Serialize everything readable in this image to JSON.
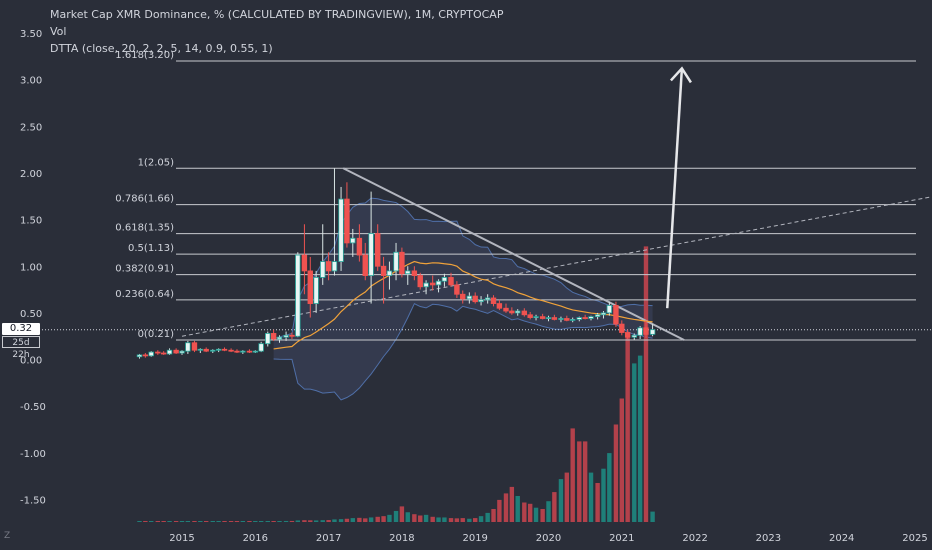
{
  "header": {
    "title": "Market Cap XMR Dominance, % (CALCULATED BY TRADINGVIEW), 1M, CRYPTOCAP",
    "vol_label": "Vol",
    "indicator_label": "DTTA (close, 20, 2, 2, 5, 14, 0.9, 0.55, 1)"
  },
  "price_axis": {
    "current_price": "0.32",
    "bar_timer": "25d 22h",
    "corner_label": "Z"
  },
  "colors": {
    "background": "#2a2e39",
    "up": "#26a69a",
    "down": "#ef5350",
    "vol_up": "#1f7f79",
    "vol_down": "#b3414b",
    "text": "#d1d4dc",
    "fib": "#c8cacf",
    "ma": "#f0a23a",
    "band": "#5a6b9a"
  },
  "chart_data": {
    "type": "candlestick",
    "title": "Market Cap XMR Dominance, % (CALCULATED BY TRADINGVIEW), 1M, CRYPTOCAP",
    "ylim": [
      -1.85,
      3.55
    ],
    "y_ticks": [
      3.5,
      3.0,
      2.5,
      2.0,
      1.5,
      1.0,
      0.5,
      0.0,
      -0.5,
      -1.0,
      -1.5
    ],
    "y_tick_labels": [
      "3.50",
      "3.00",
      "2.50",
      "2.00",
      "1.50",
      "1.00",
      "0.50",
      "0.00",
      "-0.50",
      "-1.00",
      "-1.50"
    ],
    "xlim": [
      2014.35,
      2025.4
    ],
    "x_ticks": [
      2015,
      2016,
      2017,
      2018,
      2019,
      2020,
      2021,
      2022,
      2023,
      2024,
      2025
    ],
    "x_tick_labels": [
      "2015",
      "2016",
      "2017",
      "2018",
      "2019",
      "2020",
      "2021",
      "2022",
      "2023",
      "2024",
      "2025"
    ],
    "grid": false,
    "current_price": 0.32,
    "fib_levels": [
      {
        "label": "1.618(3.20)",
        "ratio": 1.618,
        "value": 3.2
      },
      {
        "label": "1(2.05)",
        "ratio": 1,
        "value": 2.05
      },
      {
        "label": "0.786(1.66)",
        "ratio": 0.786,
        "value": 1.66
      },
      {
        "label": "0.618(1.35)",
        "ratio": 0.618,
        "value": 1.35
      },
      {
        "label": "0.5(1.13)",
        "ratio": 0.5,
        "value": 1.13
      },
      {
        "label": "0.382(0.91)",
        "ratio": 0.382,
        "value": 0.91
      },
      {
        "label": "0.236(0.64)",
        "ratio": 0.236,
        "value": 0.64
      },
      {
        "label": "0(0.21)",
        "ratio": 0,
        "value": 0.21
      }
    ],
    "descending_trendline": {
      "from": [
        2017.2,
        2.05
      ],
      "to": [
        2021.85,
        0.21
      ]
    },
    "ascending_dashed_line": {
      "from": [
        2015.0,
        0.25
      ],
      "to": [
        2025.4,
        1.77
      ]
    },
    "projection_arrow": {
      "from": [
        2021.62,
        0.55
      ],
      "to": [
        2021.82,
        3.12
      ]
    },
    "candles": [
      {
        "t": 2014.42,
        "o": 0.03,
        "h": 0.06,
        "l": 0.01,
        "c": 0.05
      },
      {
        "t": 2014.5,
        "o": 0.05,
        "h": 0.07,
        "l": 0.02,
        "c": 0.04
      },
      {
        "t": 2014.58,
        "o": 0.04,
        "h": 0.09,
        "l": 0.03,
        "c": 0.08
      },
      {
        "t": 2014.67,
        "o": 0.08,
        "h": 0.1,
        "l": 0.05,
        "c": 0.07
      },
      {
        "t": 2014.75,
        "o": 0.07,
        "h": 0.09,
        "l": 0.05,
        "c": 0.06
      },
      {
        "t": 2014.83,
        "o": 0.06,
        "h": 0.12,
        "l": 0.05,
        "c": 0.1
      },
      {
        "t": 2014.92,
        "o": 0.1,
        "h": 0.12,
        "l": 0.06,
        "c": 0.07
      },
      {
        "t": 2015.0,
        "o": 0.07,
        "h": 0.1,
        "l": 0.05,
        "c": 0.09
      },
      {
        "t": 2015.08,
        "o": 0.09,
        "h": 0.2,
        "l": 0.06,
        "c": 0.18
      },
      {
        "t": 2015.17,
        "o": 0.18,
        "h": 0.2,
        "l": 0.08,
        "c": 0.1
      },
      {
        "t": 2015.25,
        "o": 0.1,
        "h": 0.12,
        "l": 0.07,
        "c": 0.11
      },
      {
        "t": 2015.33,
        "o": 0.11,
        "h": 0.13,
        "l": 0.08,
        "c": 0.09
      },
      {
        "t": 2015.42,
        "o": 0.09,
        "h": 0.11,
        "l": 0.07,
        "c": 0.1
      },
      {
        "t": 2015.5,
        "o": 0.1,
        "h": 0.12,
        "l": 0.08,
        "c": 0.11
      },
      {
        "t": 2015.58,
        "o": 0.11,
        "h": 0.13,
        "l": 0.09,
        "c": 0.1
      },
      {
        "t": 2015.67,
        "o": 0.1,
        "h": 0.12,
        "l": 0.08,
        "c": 0.09
      },
      {
        "t": 2015.75,
        "o": 0.09,
        "h": 0.11,
        "l": 0.07,
        "c": 0.08
      },
      {
        "t": 2015.83,
        "o": 0.08,
        "h": 0.1,
        "l": 0.06,
        "c": 0.09
      },
      {
        "t": 2015.92,
        "o": 0.09,
        "h": 0.11,
        "l": 0.07,
        "c": 0.08
      },
      {
        "t": 2016.0,
        "o": 0.08,
        "h": 0.1,
        "l": 0.07,
        "c": 0.09
      },
      {
        "t": 2016.08,
        "o": 0.09,
        "h": 0.19,
        "l": 0.08,
        "c": 0.17
      },
      {
        "t": 2016.17,
        "o": 0.17,
        "h": 0.3,
        "l": 0.14,
        "c": 0.28
      },
      {
        "t": 2016.25,
        "o": 0.28,
        "h": 0.32,
        "l": 0.2,
        "c": 0.22
      },
      {
        "t": 2016.33,
        "o": 0.22,
        "h": 0.26,
        "l": 0.18,
        "c": 0.24
      },
      {
        "t": 2016.42,
        "o": 0.24,
        "h": 0.3,
        "l": 0.2,
        "c": 0.26
      },
      {
        "t": 2016.5,
        "o": 0.26,
        "h": 0.29,
        "l": 0.22,
        "c": 0.25
      },
      {
        "t": 2016.58,
        "o": 0.25,
        "h": 1.15,
        "l": 0.24,
        "c": 1.12
      },
      {
        "t": 2016.67,
        "o": 1.12,
        "h": 1.45,
        "l": 0.7,
        "c": 0.95
      },
      {
        "t": 2016.75,
        "o": 0.95,
        "h": 1.1,
        "l": 0.45,
        "c": 0.6
      },
      {
        "t": 2016.83,
        "o": 0.6,
        "h": 0.95,
        "l": 0.5,
        "c": 0.88
      },
      {
        "t": 2016.92,
        "o": 0.88,
        "h": 1.45,
        "l": 0.8,
        "c": 1.05
      },
      {
        "t": 2017.0,
        "o": 1.05,
        "h": 1.15,
        "l": 0.85,
        "c": 0.95
      },
      {
        "t": 2017.08,
        "o": 0.95,
        "h": 2.05,
        "l": 0.9,
        "c": 1.05
      },
      {
        "t": 2017.17,
        "o": 1.05,
        "h": 1.85,
        "l": 0.95,
        "c": 1.72
      },
      {
        "t": 2017.25,
        "o": 1.72,
        "h": 1.9,
        "l": 1.2,
        "c": 1.25
      },
      {
        "t": 2017.33,
        "o": 1.25,
        "h": 1.4,
        "l": 1.1,
        "c": 1.3
      },
      {
        "t": 2017.42,
        "o": 1.3,
        "h": 1.45,
        "l": 1.05,
        "c": 1.12
      },
      {
        "t": 2017.5,
        "o": 1.12,
        "h": 1.25,
        "l": 0.85,
        "c": 0.9
      },
      {
        "t": 2017.58,
        "o": 0.9,
        "h": 1.8,
        "l": 0.6,
        "c": 1.35
      },
      {
        "t": 2017.67,
        "o": 1.35,
        "h": 1.45,
        "l": 0.95,
        "c": 1.0
      },
      {
        "t": 2017.75,
        "o": 1.0,
        "h": 1.1,
        "l": 0.6,
        "c": 0.9
      },
      {
        "t": 2017.83,
        "o": 0.9,
        "h": 1.05,
        "l": 0.75,
        "c": 0.95
      },
      {
        "t": 2017.92,
        "o": 0.95,
        "h": 1.25,
        "l": 0.85,
        "c": 1.15
      },
      {
        "t": 2018.0,
        "o": 1.15,
        "h": 1.2,
        "l": 0.88,
        "c": 0.92
      },
      {
        "t": 2018.08,
        "o": 0.92,
        "h": 1.0,
        "l": 0.8,
        "c": 0.95
      },
      {
        "t": 2018.17,
        "o": 0.95,
        "h": 1.0,
        "l": 0.85,
        "c": 0.9
      },
      {
        "t": 2018.25,
        "o": 0.9,
        "h": 0.93,
        "l": 0.75,
        "c": 0.78
      },
      {
        "t": 2018.33,
        "o": 0.78,
        "h": 0.85,
        "l": 0.7,
        "c": 0.82
      },
      {
        "t": 2018.42,
        "o": 0.82,
        "h": 0.9,
        "l": 0.74,
        "c": 0.8
      },
      {
        "t": 2018.5,
        "o": 0.8,
        "h": 0.86,
        "l": 0.72,
        "c": 0.84
      },
      {
        "t": 2018.58,
        "o": 0.84,
        "h": 0.92,
        "l": 0.78,
        "c": 0.88
      },
      {
        "t": 2018.67,
        "o": 0.88,
        "h": 0.93,
        "l": 0.78,
        "c": 0.8
      },
      {
        "t": 2018.75,
        "o": 0.8,
        "h": 0.84,
        "l": 0.66,
        "c": 0.7
      },
      {
        "t": 2018.83,
        "o": 0.7,
        "h": 0.74,
        "l": 0.6,
        "c": 0.65
      },
      {
        "t": 2018.92,
        "o": 0.65,
        "h": 0.72,
        "l": 0.6,
        "c": 0.68
      },
      {
        "t": 2019.0,
        "o": 0.68,
        "h": 0.72,
        "l": 0.6,
        "c": 0.62
      },
      {
        "t": 2019.08,
        "o": 0.62,
        "h": 0.68,
        "l": 0.58,
        "c": 0.64
      },
      {
        "t": 2019.17,
        "o": 0.64,
        "h": 0.7,
        "l": 0.6,
        "c": 0.66
      },
      {
        "t": 2019.25,
        "o": 0.66,
        "h": 0.69,
        "l": 0.57,
        "c": 0.6
      },
      {
        "t": 2019.33,
        "o": 0.6,
        "h": 0.64,
        "l": 0.53,
        "c": 0.55
      },
      {
        "t": 2019.42,
        "o": 0.55,
        "h": 0.6,
        "l": 0.5,
        "c": 0.52
      },
      {
        "t": 2019.5,
        "o": 0.52,
        "h": 0.56,
        "l": 0.48,
        "c": 0.5
      },
      {
        "t": 2019.58,
        "o": 0.5,
        "h": 0.54,
        "l": 0.47,
        "c": 0.52
      },
      {
        "t": 2019.67,
        "o": 0.52,
        "h": 0.55,
        "l": 0.46,
        "c": 0.48
      },
      {
        "t": 2019.75,
        "o": 0.48,
        "h": 0.51,
        "l": 0.43,
        "c": 0.45
      },
      {
        "t": 2019.83,
        "o": 0.45,
        "h": 0.48,
        "l": 0.42,
        "c": 0.46
      },
      {
        "t": 2019.92,
        "o": 0.46,
        "h": 0.49,
        "l": 0.43,
        "c": 0.44
      },
      {
        "t": 2020.0,
        "o": 0.44,
        "h": 0.47,
        "l": 0.41,
        "c": 0.45
      },
      {
        "t": 2020.08,
        "o": 0.45,
        "h": 0.48,
        "l": 0.42,
        "c": 0.43
      },
      {
        "t": 2020.17,
        "o": 0.43,
        "h": 0.46,
        "l": 0.4,
        "c": 0.44
      },
      {
        "t": 2020.25,
        "o": 0.44,
        "h": 0.47,
        "l": 0.41,
        "c": 0.42
      },
      {
        "t": 2020.33,
        "o": 0.42,
        "h": 0.45,
        "l": 0.4,
        "c": 0.43
      },
      {
        "t": 2020.42,
        "o": 0.43,
        "h": 0.46,
        "l": 0.41,
        "c": 0.45
      },
      {
        "t": 2020.5,
        "o": 0.45,
        "h": 0.48,
        "l": 0.43,
        "c": 0.44
      },
      {
        "t": 2020.58,
        "o": 0.44,
        "h": 0.47,
        "l": 0.42,
        "c": 0.46
      },
      {
        "t": 2020.67,
        "o": 0.46,
        "h": 0.5,
        "l": 0.43,
        "c": 0.48
      },
      {
        "t": 2020.75,
        "o": 0.48,
        "h": 0.52,
        "l": 0.44,
        "c": 0.5
      },
      {
        "t": 2020.83,
        "o": 0.5,
        "h": 0.62,
        "l": 0.47,
        "c": 0.58
      },
      {
        "t": 2020.92,
        "o": 0.58,
        "h": 0.62,
        "l": 0.35,
        "c": 0.38
      },
      {
        "t": 2021.0,
        "o": 0.38,
        "h": 0.42,
        "l": 0.26,
        "c": 0.29
      },
      {
        "t": 2021.08,
        "o": 0.29,
        "h": 0.32,
        "l": 0.22,
        "c": 0.24
      },
      {
        "t": 2021.17,
        "o": 0.24,
        "h": 0.28,
        "l": 0.21,
        "c": 0.26
      },
      {
        "t": 2021.25,
        "o": 0.26,
        "h": 0.36,
        "l": 0.22,
        "c": 0.34
      },
      {
        "t": 2021.33,
        "o": 0.34,
        "h": 0.42,
        "l": 0.23,
        "c": 0.27
      },
      {
        "t": 2021.42,
        "o": 0.27,
        "h": 0.38,
        "l": 0.25,
        "c": 0.32
      }
    ],
    "volume": [
      {
        "t": 2014.42,
        "v": 0.005,
        "up": true
      },
      {
        "t": 2014.5,
        "v": 0.005,
        "up": false
      },
      {
        "t": 2014.58,
        "v": 0.005,
        "up": true
      },
      {
        "t": 2014.67,
        "v": 0.005,
        "up": false
      },
      {
        "t": 2014.75,
        "v": 0.005,
        "up": false
      },
      {
        "t": 2014.83,
        "v": 0.005,
        "up": true
      },
      {
        "t": 2014.92,
        "v": 0.005,
        "up": false
      },
      {
        "t": 2015.0,
        "v": 0.005,
        "up": true
      },
      {
        "t": 2015.08,
        "v": 0.006,
        "up": true
      },
      {
        "t": 2015.17,
        "v": 0.006,
        "up": false
      },
      {
        "t": 2015.25,
        "v": 0.005,
        "up": true
      },
      {
        "t": 2015.33,
        "v": 0.005,
        "up": false
      },
      {
        "t": 2015.42,
        "v": 0.005,
        "up": true
      },
      {
        "t": 2015.5,
        "v": 0.005,
        "up": true
      },
      {
        "t": 2015.58,
        "v": 0.005,
        "up": false
      },
      {
        "t": 2015.67,
        "v": 0.005,
        "up": false
      },
      {
        "t": 2015.75,
        "v": 0.005,
        "up": false
      },
      {
        "t": 2015.83,
        "v": 0.005,
        "up": true
      },
      {
        "t": 2015.92,
        "v": 0.005,
        "up": false
      },
      {
        "t": 2016.0,
        "v": 0.006,
        "up": true
      },
      {
        "t": 2016.08,
        "v": 0.006,
        "up": true
      },
      {
        "t": 2016.17,
        "v": 0.007,
        "up": true
      },
      {
        "t": 2016.25,
        "v": 0.007,
        "up": false
      },
      {
        "t": 2016.33,
        "v": 0.007,
        "up": true
      },
      {
        "t": 2016.42,
        "v": 0.008,
        "up": true
      },
      {
        "t": 2016.5,
        "v": 0.008,
        "up": false
      },
      {
        "t": 2016.58,
        "v": 0.012,
        "up": true
      },
      {
        "t": 2016.67,
        "v": 0.014,
        "up": false
      },
      {
        "t": 2016.75,
        "v": 0.013,
        "up": false
      },
      {
        "t": 2016.83,
        "v": 0.012,
        "up": true
      },
      {
        "t": 2016.92,
        "v": 0.014,
        "up": true
      },
      {
        "t": 2017.0,
        "v": 0.015,
        "up": false
      },
      {
        "t": 2017.08,
        "v": 0.02,
        "up": true
      },
      {
        "t": 2017.17,
        "v": 0.022,
        "up": true
      },
      {
        "t": 2017.25,
        "v": 0.025,
        "up": false
      },
      {
        "t": 2017.33,
        "v": 0.03,
        "up": true
      },
      {
        "t": 2017.42,
        "v": 0.032,
        "up": false
      },
      {
        "t": 2017.5,
        "v": 0.028,
        "up": false
      },
      {
        "t": 2017.58,
        "v": 0.035,
        "up": true
      },
      {
        "t": 2017.67,
        "v": 0.04,
        "up": false
      },
      {
        "t": 2017.75,
        "v": 0.045,
        "up": false
      },
      {
        "t": 2017.83,
        "v": 0.055,
        "up": true
      },
      {
        "t": 2017.92,
        "v": 0.085,
        "up": true
      },
      {
        "t": 2018.0,
        "v": 0.12,
        "up": false
      },
      {
        "t": 2018.08,
        "v": 0.075,
        "up": true
      },
      {
        "t": 2018.17,
        "v": 0.06,
        "up": false
      },
      {
        "t": 2018.25,
        "v": 0.05,
        "up": false
      },
      {
        "t": 2018.33,
        "v": 0.055,
        "up": true
      },
      {
        "t": 2018.42,
        "v": 0.04,
        "up": false
      },
      {
        "t": 2018.5,
        "v": 0.035,
        "up": true
      },
      {
        "t": 2018.58,
        "v": 0.035,
        "up": true
      },
      {
        "t": 2018.67,
        "v": 0.03,
        "up": false
      },
      {
        "t": 2018.75,
        "v": 0.028,
        "up": false
      },
      {
        "t": 2018.83,
        "v": 0.03,
        "up": false
      },
      {
        "t": 2018.92,
        "v": 0.025,
        "up": true
      },
      {
        "t": 2019.0,
        "v": 0.03,
        "up": false
      },
      {
        "t": 2019.08,
        "v": 0.045,
        "up": true
      },
      {
        "t": 2019.17,
        "v": 0.07,
        "up": true
      },
      {
        "t": 2019.25,
        "v": 0.1,
        "up": false
      },
      {
        "t": 2019.33,
        "v": 0.17,
        "up": false
      },
      {
        "t": 2019.42,
        "v": 0.22,
        "up": false
      },
      {
        "t": 2019.5,
        "v": 0.27,
        "up": false
      },
      {
        "t": 2019.58,
        "v": 0.2,
        "up": true
      },
      {
        "t": 2019.67,
        "v": 0.15,
        "up": false
      },
      {
        "t": 2019.75,
        "v": 0.14,
        "up": false
      },
      {
        "t": 2019.83,
        "v": 0.11,
        "up": true
      },
      {
        "t": 2019.92,
        "v": 0.1,
        "up": false
      },
      {
        "t": 2020.0,
        "v": 0.16,
        "up": true
      },
      {
        "t": 2020.08,
        "v": 0.23,
        "up": false
      },
      {
        "t": 2020.17,
        "v": 0.33,
        "up": true
      },
      {
        "t": 2020.25,
        "v": 0.38,
        "up": false
      },
      {
        "t": 2020.33,
        "v": 0.72,
        "up": false
      },
      {
        "t": 2020.42,
        "v": 0.62,
        "up": false
      },
      {
        "t": 2020.5,
        "v": 0.62,
        "up": false
      },
      {
        "t": 2020.58,
        "v": 0.38,
        "up": true
      },
      {
        "t": 2020.67,
        "v": 0.3,
        "up": false
      },
      {
        "t": 2020.75,
        "v": 0.41,
        "up": true
      },
      {
        "t": 2020.83,
        "v": 0.53,
        "up": true
      },
      {
        "t": 2020.92,
        "v": 0.75,
        "up": false
      },
      {
        "t": 2021.0,
        "v": 0.95,
        "up": false
      },
      {
        "t": 2021.08,
        "v": 1.43,
        "up": false
      },
      {
        "t": 2021.17,
        "v": 1.22,
        "up": true
      },
      {
        "t": 2021.25,
        "v": 1.28,
        "up": true
      },
      {
        "t": 2021.33,
        "v": 2.12,
        "up": false
      },
      {
        "t": 2021.42,
        "v": 0.08,
        "up": true
      }
    ]
  }
}
